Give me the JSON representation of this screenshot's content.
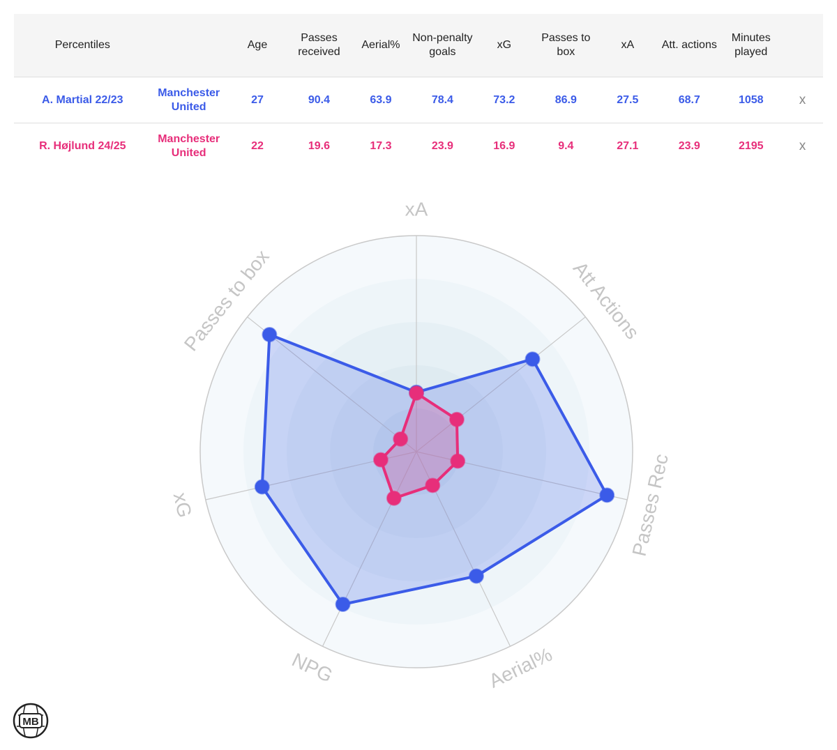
{
  "table": {
    "header": {
      "label": "Percentiles",
      "columns": [
        "Age",
        "Passes received",
        "Aerial%",
        "Non-penalty goals",
        "xG",
        "Passes to box",
        "xA",
        "Att. actions",
        "Minutes played"
      ]
    },
    "remove_label": "x",
    "players": [
      {
        "name": "A. Martial 22/23",
        "team": "Manchester United",
        "values": [
          "27",
          "90.4",
          "63.9",
          "78.4",
          "73.2",
          "86.9",
          "27.5",
          "68.7",
          "1058"
        ],
        "color": "#3b5be8"
      },
      {
        "name": "R. Højlund 24/25",
        "team": "Manchester United",
        "values": [
          "22",
          "19.6",
          "17.3",
          "23.9",
          "16.9",
          "9.4",
          "27.1",
          "23.9",
          "2195"
        ],
        "color": "#e72e7a"
      }
    ]
  },
  "chart_data": {
    "type": "radar",
    "axes": [
      "xA",
      "Att Actions",
      "Passes Rec",
      "Aerial%",
      "NPG",
      "xG",
      "Passes to box"
    ],
    "range": [
      0,
      100
    ],
    "series": [
      {
        "name": "A. Martial 22/23",
        "values": [
          27.5,
          68.7,
          90.4,
          63.9,
          78.4,
          73.2,
          86.9
        ],
        "color": "#3b5be8"
      },
      {
        "name": "R. Højlund 24/25",
        "values": [
          27.1,
          23.9,
          19.6,
          17.3,
          23.9,
          16.9,
          9.4
        ],
        "color": "#e72e7a"
      }
    ]
  },
  "logo": {
    "text": "MB"
  }
}
